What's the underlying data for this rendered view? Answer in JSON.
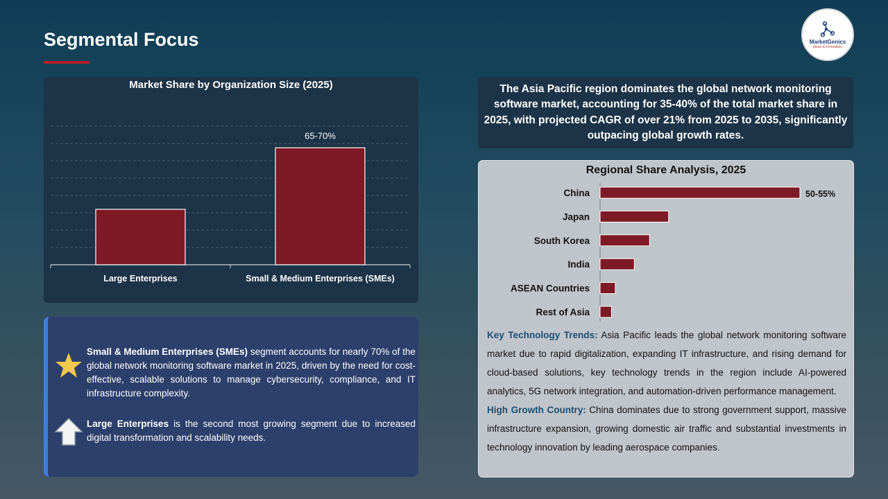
{
  "slide": {
    "title": "Segmental Focus"
  },
  "logo": {
    "name": "MarketGenics",
    "tagline": "Ideas to Innovation"
  },
  "org_chart": {
    "title": "Market Share by Organization Size (2025)"
  },
  "info": {
    "sme_bold": "Small & Medium Enterprises (SMEs)",
    "sme_text": " segment accounts for nearly 70% of the global network monitoring software market in 2025, driven by the need for cost-effective, scalable solutions to manage cybersecurity, compliance, and IT infrastructure complexity.",
    "large_bold": "Large Enterprises",
    "large_text": " is the second most growing segment due to increased digital transformation and scalability needs.",
    "star_icon": "star-icon",
    "arrow_icon": "up-arrow-icon"
  },
  "callout": {
    "text": "The Asia Pacific region dominates the global network monitoring software market, accounting for 35-40% of the total market share in 2025, with projected CAGR of over 21% from 2025 to 2035, significantly outpacing global growth rates."
  },
  "regional": {
    "title": "Regional Share Analysis, 2025",
    "trends_label": "Key Technology Trends:",
    "trends_text": " Asia Pacific leads the global network monitoring software market due to rapid digitalization, expanding IT infrastructure, and rising demand for cloud-based solutions, key technology trends in the region include AI-powered analytics, 5G network integration, and automation-driven performance management.",
    "growth_label": "High Growth Country:",
    "growth_text": " China dominates due to strong government support, massive infrastructure expansion, growing domestic air traffic and substantial investments in technology innovation by leading aerospace companies."
  },
  "colors": {
    "bar": "#7d1a25",
    "accent_red": "#b3202a",
    "accent_blue": "#3f7fd9",
    "star": "#f2c94c"
  },
  "chart_data": [
    {
      "type": "bar",
      "title": "Market Share by Organization Size (2025)",
      "categories": [
        "Large Enterprises",
        "Small & Medium Enterprises (SMEs)"
      ],
      "values": [
        32,
        67.5
      ],
      "data_labels": [
        "",
        "65-70%"
      ],
      "ylim": [
        0,
        80
      ],
      "grid": true
    },
    {
      "type": "bar",
      "orientation": "horizontal",
      "title": "Regional Share Analysis, 2025",
      "categories": [
        "China",
        "Japan",
        "South Korea",
        "India",
        "ASEAN Countries",
        "Rest of Asia"
      ],
      "values": [
        52.5,
        18,
        13,
        9,
        4,
        3
      ],
      "data_labels": [
        "50-55%",
        "",
        "",
        "",
        "",
        ""
      ],
      "xlim": [
        0,
        52.5
      ]
    }
  ]
}
